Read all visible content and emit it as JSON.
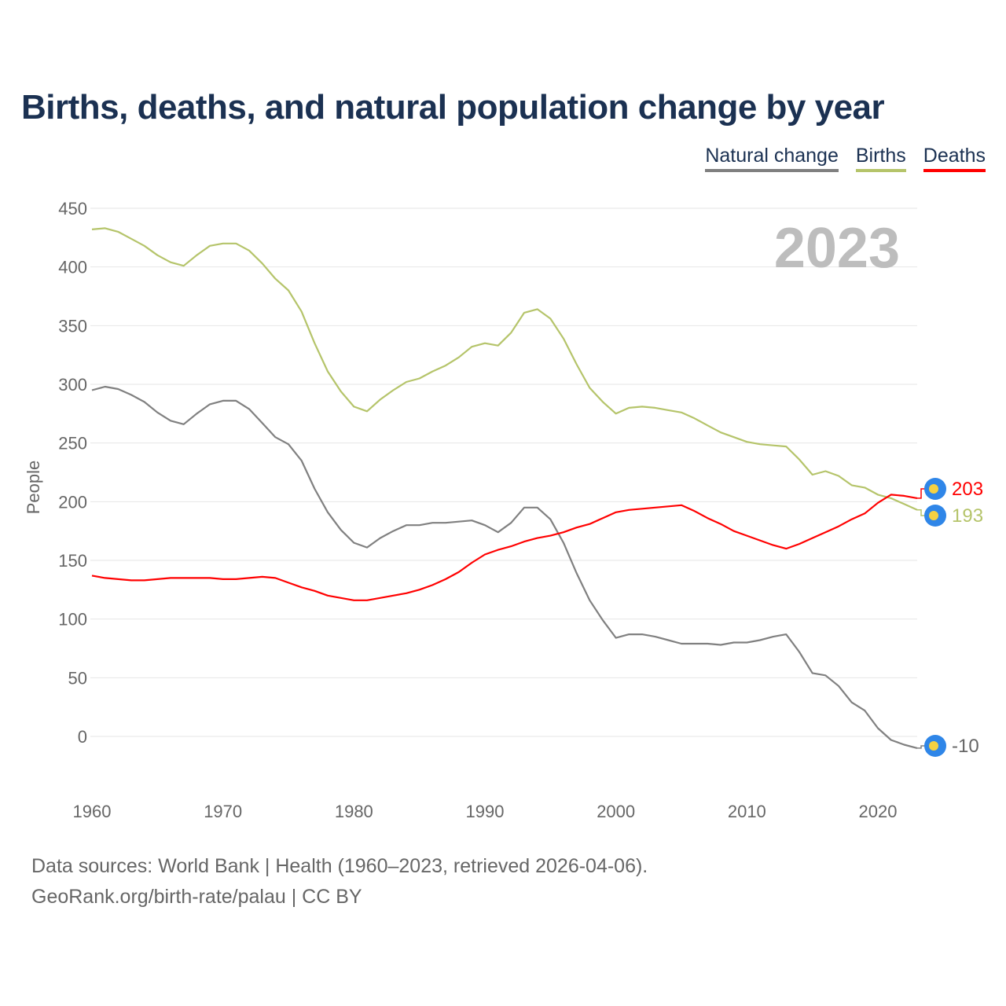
{
  "chart_data": {
    "type": "line",
    "title": "Births, deaths, and natural population change by year",
    "ylabel": "People",
    "xlabel": "",
    "ylim": [
      -40,
      450
    ],
    "xlim": [
      1960,
      2023
    ],
    "yticks": [
      0,
      50,
      100,
      150,
      200,
      250,
      300,
      350,
      400,
      450
    ],
    "xticks": [
      1960,
      1970,
      1980,
      1990,
      2000,
      2010,
      2020
    ],
    "grid": true,
    "legend_position": "top-right",
    "year_watermark": "2023",
    "x_start": 1960,
    "series": [
      {
        "name": "Natural change",
        "color": "#808080",
        "end_label": "-10",
        "values": [
          295,
          298,
          296,
          291,
          285,
          276,
          269,
          266,
          275,
          283,
          286,
          286,
          279,
          267,
          255,
          249,
          235,
          211,
          191,
          176,
          165,
          161,
          169,
          175,
          180,
          180,
          182,
          182,
          183,
          184,
          180,
          174,
          182,
          195,
          195,
          185,
          165,
          139,
          116,
          99,
          84,
          87,
          87,
          85,
          82,
          79,
          79,
          79,
          78,
          80,
          80,
          82,
          85,
          87,
          72,
          54,
          52,
          43,
          29,
          22,
          7,
          -3,
          -7,
          -10
        ]
      },
      {
        "name": "Births",
        "color": "#b5c46a",
        "end_label": "193",
        "values": [
          432,
          433,
          430,
          424,
          418,
          410,
          404,
          401,
          410,
          418,
          420,
          420,
          414,
          403,
          390,
          380,
          362,
          335,
          311,
          294,
          281,
          277,
          287,
          295,
          302,
          305,
          311,
          316,
          323,
          332,
          335,
          333,
          344,
          361,
          364,
          356,
          339,
          317,
          297,
          285,
          275,
          280,
          281,
          280,
          278,
          276,
          271,
          265,
          259,
          255,
          251,
          249,
          248,
          247,
          236,
          223,
          226,
          222,
          214,
          212,
          206,
          203,
          198,
          193
        ]
      },
      {
        "name": "Deaths",
        "color": "#ff0000",
        "end_label": "203",
        "values": [
          137,
          135,
          134,
          133,
          133,
          134,
          135,
          135,
          135,
          135,
          134,
          134,
          135,
          136,
          135,
          131,
          127,
          124,
          120,
          118,
          116,
          116,
          118,
          120,
          122,
          125,
          129,
          134,
          140,
          148,
          155,
          159,
          162,
          166,
          169,
          171,
          174,
          178,
          181,
          186,
          191,
          193,
          194,
          195,
          196,
          197,
          192,
          186,
          181,
          175,
          171,
          167,
          163,
          160,
          164,
          169,
          174,
          179,
          185,
          190,
          199,
          206,
          205,
          203
        ]
      }
    ]
  },
  "footer": {
    "line1": "Data sources: World Bank | Health (1960–2023, retrieved 2026-04-06).",
    "line2": "GeoRank.org/birth-rate/palau | CC BY"
  }
}
